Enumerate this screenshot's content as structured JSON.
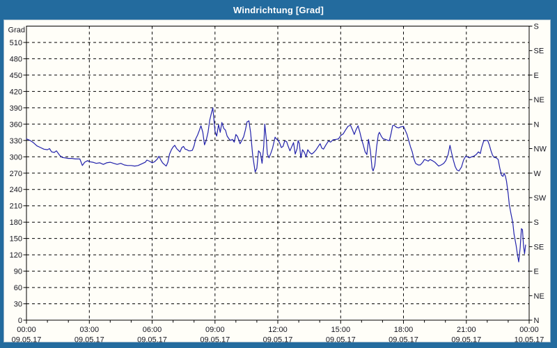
{
  "window": {
    "title": "Windrichtung [Grad]"
  },
  "colors": {
    "frame_blue": "#236b9e",
    "panel_bg": "#fffef8",
    "line_navy": "#2121ab",
    "grid": "#000000",
    "label_text": "#15151e",
    "title_text": "#ffffff"
  },
  "chart_data": {
    "type": "line",
    "title": "Windrichtung [Grad]",
    "legend_position": "none",
    "grid": "dashed black; horizontal every 30 deg, vertical every 3 h",
    "y_axis": {
      "label": "Grad",
      "min": 0,
      "max": 540,
      "tick_step": 30,
      "ticks": [
        0,
        30,
        60,
        90,
        120,
        150,
        180,
        210,
        240,
        270,
        300,
        330,
        360,
        390,
        420,
        450,
        480,
        510
      ]
    },
    "right_axis": {
      "tick_step_deg": 45,
      "ticks": [
        {
          "deg": 540,
          "label": "S"
        },
        {
          "deg": 495,
          "label": "SE"
        },
        {
          "deg": 450,
          "label": "E"
        },
        {
          "deg": 405,
          "label": "NE"
        },
        {
          "deg": 360,
          "label": "N"
        },
        {
          "deg": 315,
          "label": "NW"
        },
        {
          "deg": 270,
          "label": "W"
        },
        {
          "deg": 225,
          "label": "SW"
        },
        {
          "deg": 180,
          "label": "S"
        },
        {
          "deg": 135,
          "label": "SE"
        },
        {
          "deg": 90,
          "label": "E"
        },
        {
          "deg": 45,
          "label": "NE"
        },
        {
          "deg": 0,
          "label": "N"
        }
      ]
    },
    "x_axis": {
      "min_hour": 0,
      "max_hour": 24,
      "major_tick_step_hours": 3,
      "minor_tick_step_hours": 1,
      "ticks": [
        {
          "hour": 0,
          "time": "00:00",
          "date": "09.05.17"
        },
        {
          "hour": 3,
          "time": "03:00",
          "date": "09.05.17"
        },
        {
          "hour": 6,
          "time": "06:00",
          "date": "09.05.17"
        },
        {
          "hour": 9,
          "time": "09:00",
          "date": "09.05.17"
        },
        {
          "hour": 12,
          "time": "12:00",
          "date": "09.05.17"
        },
        {
          "hour": 15,
          "time": "15:00",
          "date": "09.05.17"
        },
        {
          "hour": 18,
          "time": "18:00",
          "date": "09.05.17"
        },
        {
          "hour": 21,
          "time": "21:00",
          "date": "09.05.17"
        },
        {
          "hour": 24,
          "time": "00:00",
          "date": "10.05.17"
        }
      ]
    },
    "series": [
      {
        "name": "Windrichtung",
        "unit": "Grad",
        "color": "#2121ab",
        "points": [
          [
            0.0,
            333
          ],
          [
            0.17,
            330
          ],
          [
            0.33,
            326
          ],
          [
            0.5,
            320
          ],
          [
            0.67,
            317
          ],
          [
            0.83,
            314
          ],
          [
            1.0,
            313
          ],
          [
            1.1,
            315
          ],
          [
            1.2,
            309
          ],
          [
            1.33,
            308
          ],
          [
            1.43,
            311
          ],
          [
            1.58,
            303
          ],
          [
            1.7,
            299
          ],
          [
            1.83,
            298
          ],
          [
            2.0,
            297
          ],
          [
            2.17,
            297
          ],
          [
            2.33,
            296
          ],
          [
            2.55,
            296
          ],
          [
            2.67,
            284
          ],
          [
            2.78,
            290
          ],
          [
            2.92,
            293
          ],
          [
            3.0,
            291
          ],
          [
            3.17,
            290
          ],
          [
            3.33,
            288
          ],
          [
            3.5,
            289
          ],
          [
            3.67,
            286
          ],
          [
            3.83,
            289
          ],
          [
            4.0,
            290
          ],
          [
            4.17,
            288
          ],
          [
            4.33,
            286
          ],
          [
            4.5,
            288
          ],
          [
            4.67,
            285
          ],
          [
            4.83,
            284
          ],
          [
            5.0,
            284
          ],
          [
            5.17,
            283
          ],
          [
            5.33,
            284
          ],
          [
            5.5,
            287
          ],
          [
            5.67,
            290
          ],
          [
            5.75,
            294
          ],
          [
            5.87,
            292
          ],
          [
            6.0,
            289
          ],
          [
            6.12,
            291
          ],
          [
            6.25,
            296
          ],
          [
            6.33,
            301
          ],
          [
            6.42,
            294
          ],
          [
            6.5,
            289
          ],
          [
            6.58,
            286
          ],
          [
            6.67,
            283
          ],
          [
            6.75,
            290
          ],
          [
            6.83,
            305
          ],
          [
            6.92,
            313
          ],
          [
            7.0,
            318
          ],
          [
            7.08,
            321
          ],
          [
            7.17,
            315
          ],
          [
            7.25,
            312
          ],
          [
            7.33,
            309
          ],
          [
            7.42,
            317
          ],
          [
            7.5,
            319
          ],
          [
            7.58,
            314
          ],
          [
            7.67,
            313
          ],
          [
            7.75,
            311
          ],
          [
            7.83,
            311
          ],
          [
            7.92,
            312
          ],
          [
            8.0,
            320
          ],
          [
            8.08,
            333
          ],
          [
            8.17,
            340
          ],
          [
            8.25,
            348
          ],
          [
            8.33,
            357
          ],
          [
            8.42,
            345
          ],
          [
            8.5,
            322
          ],
          [
            8.58,
            330
          ],
          [
            8.67,
            345
          ],
          [
            8.75,
            367
          ],
          [
            8.83,
            380
          ],
          [
            8.9,
            390
          ],
          [
            9.0,
            347
          ],
          [
            9.08,
            338
          ],
          [
            9.17,
            359
          ],
          [
            9.25,
            345
          ],
          [
            9.33,
            363
          ],
          [
            9.42,
            352
          ],
          [
            9.5,
            349
          ],
          [
            9.58,
            338
          ],
          [
            9.67,
            333
          ],
          [
            9.75,
            330
          ],
          [
            9.83,
            332
          ],
          [
            9.92,
            327
          ],
          [
            10.0,
            341
          ],
          [
            10.08,
            337
          ],
          [
            10.2,
            324
          ],
          [
            10.28,
            330
          ],
          [
            10.37,
            337
          ],
          [
            10.45,
            349
          ],
          [
            10.53,
            364
          ],
          [
            10.62,
            366
          ],
          [
            10.7,
            345
          ],
          [
            10.8,
            303
          ],
          [
            10.92,
            272
          ],
          [
            11.0,
            279
          ],
          [
            11.08,
            311
          ],
          [
            11.17,
            307
          ],
          [
            11.25,
            288
          ],
          [
            11.33,
            320
          ],
          [
            11.38,
            360
          ],
          [
            11.45,
            332
          ],
          [
            11.5,
            305
          ],
          [
            11.58,
            298
          ],
          [
            11.67,
            307
          ],
          [
            11.75,
            316
          ],
          [
            11.87,
            336
          ],
          [
            11.95,
            332
          ],
          [
            12.0,
            331
          ],
          [
            12.08,
            326
          ],
          [
            12.17,
            317
          ],
          [
            12.25,
            319
          ],
          [
            12.33,
            329
          ],
          [
            12.42,
            328
          ],
          [
            12.5,
            319
          ],
          [
            12.58,
            311
          ],
          [
            12.67,
            319
          ],
          [
            12.75,
            326
          ],
          [
            12.83,
            305
          ],
          [
            12.92,
            315
          ],
          [
            12.97,
            330
          ],
          [
            13.03,
            324
          ],
          [
            13.1,
            298
          ],
          [
            13.18,
            313
          ],
          [
            13.27,
            308
          ],
          [
            13.35,
            300
          ],
          [
            13.43,
            313
          ],
          [
            13.52,
            308
          ],
          [
            13.62,
            305
          ],
          [
            13.72,
            308
          ],
          [
            13.83,
            313
          ],
          [
            13.93,
            319
          ],
          [
            14.02,
            324
          ],
          [
            14.1,
            316
          ],
          [
            14.18,
            314
          ],
          [
            14.3,
            322
          ],
          [
            14.42,
            329
          ],
          [
            14.52,
            327
          ],
          [
            14.63,
            331
          ],
          [
            14.8,
            332
          ],
          [
            14.9,
            333
          ],
          [
            15.0,
            339
          ],
          [
            15.12,
            342
          ],
          [
            15.23,
            349
          ],
          [
            15.35,
            356
          ],
          [
            15.47,
            358
          ],
          [
            15.57,
            349
          ],
          [
            15.65,
            341
          ],
          [
            15.73,
            349
          ],
          [
            15.83,
            357
          ],
          [
            15.92,
            345
          ],
          [
            16.0,
            332
          ],
          [
            16.08,
            322
          ],
          [
            16.17,
            309
          ],
          [
            16.25,
            304
          ],
          [
            16.33,
            332
          ],
          [
            16.42,
            311
          ],
          [
            16.5,
            279
          ],
          [
            16.55,
            274
          ],
          [
            16.63,
            284
          ],
          [
            16.72,
            319
          ],
          [
            16.8,
            341
          ],
          [
            16.85,
            345
          ],
          [
            16.95,
            337
          ],
          [
            17.03,
            333
          ],
          [
            17.13,
            332
          ],
          [
            17.27,
            330
          ],
          [
            17.33,
            330
          ],
          [
            17.4,
            341
          ],
          [
            17.48,
            357
          ],
          [
            17.55,
            358
          ],
          [
            17.67,
            354
          ],
          [
            17.77,
            353
          ],
          [
            17.88,
            355
          ],
          [
            18.0,
            356
          ],
          [
            18.08,
            349
          ],
          [
            18.17,
            341
          ],
          [
            18.25,
            330
          ],
          [
            18.33,
            319
          ],
          [
            18.42,
            309
          ],
          [
            18.5,
            296
          ],
          [
            18.58,
            288
          ],
          [
            18.7,
            285
          ],
          [
            18.8,
            285
          ],
          [
            18.92,
            290
          ],
          [
            19.0,
            295
          ],
          [
            19.08,
            294
          ],
          [
            19.18,
            292
          ],
          [
            19.27,
            295
          ],
          [
            19.38,
            293
          ],
          [
            19.5,
            290
          ],
          [
            19.6,
            286
          ],
          [
            19.68,
            283
          ],
          [
            19.8,
            285
          ],
          [
            19.92,
            288
          ],
          [
            20.02,
            293
          ],
          [
            20.13,
            304
          ],
          [
            20.22,
            321
          ],
          [
            20.28,
            310
          ],
          [
            20.38,
            294
          ],
          [
            20.47,
            282
          ],
          [
            20.55,
            276
          ],
          [
            20.65,
            274
          ],
          [
            20.77,
            281
          ],
          [
            20.87,
            294
          ],
          [
            20.97,
            301
          ],
          [
            21.05,
            300
          ],
          [
            21.15,
            298
          ],
          [
            21.25,
            300
          ],
          [
            21.35,
            301
          ],
          [
            21.47,
            304
          ],
          [
            21.58,
            309
          ],
          [
            21.67,
            306
          ],
          [
            21.73,
            317
          ],
          [
            21.83,
            329
          ],
          [
            21.92,
            330
          ],
          [
            22.02,
            330
          ],
          [
            22.1,
            322
          ],
          [
            22.18,
            311
          ],
          [
            22.25,
            303
          ],
          [
            22.32,
            299
          ],
          [
            22.43,
            298
          ],
          [
            22.52,
            295
          ],
          [
            22.6,
            279
          ],
          [
            22.68,
            266
          ],
          [
            22.75,
            264
          ],
          [
            22.8,
            270
          ],
          [
            22.87,
            264
          ],
          [
            22.92,
            255
          ],
          [
            23.0,
            232
          ],
          [
            23.05,
            213
          ],
          [
            23.13,
            196
          ],
          [
            23.22,
            179
          ],
          [
            23.28,
            158
          ],
          [
            23.38,
            137
          ],
          [
            23.45,
            118
          ],
          [
            23.5,
            107
          ],
          [
            23.57,
            133
          ],
          [
            23.63,
            168
          ],
          [
            23.68,
            166
          ],
          [
            23.73,
            137
          ],
          [
            23.78,
            122
          ],
          [
            23.83,
            138
          ]
        ]
      }
    ]
  }
}
